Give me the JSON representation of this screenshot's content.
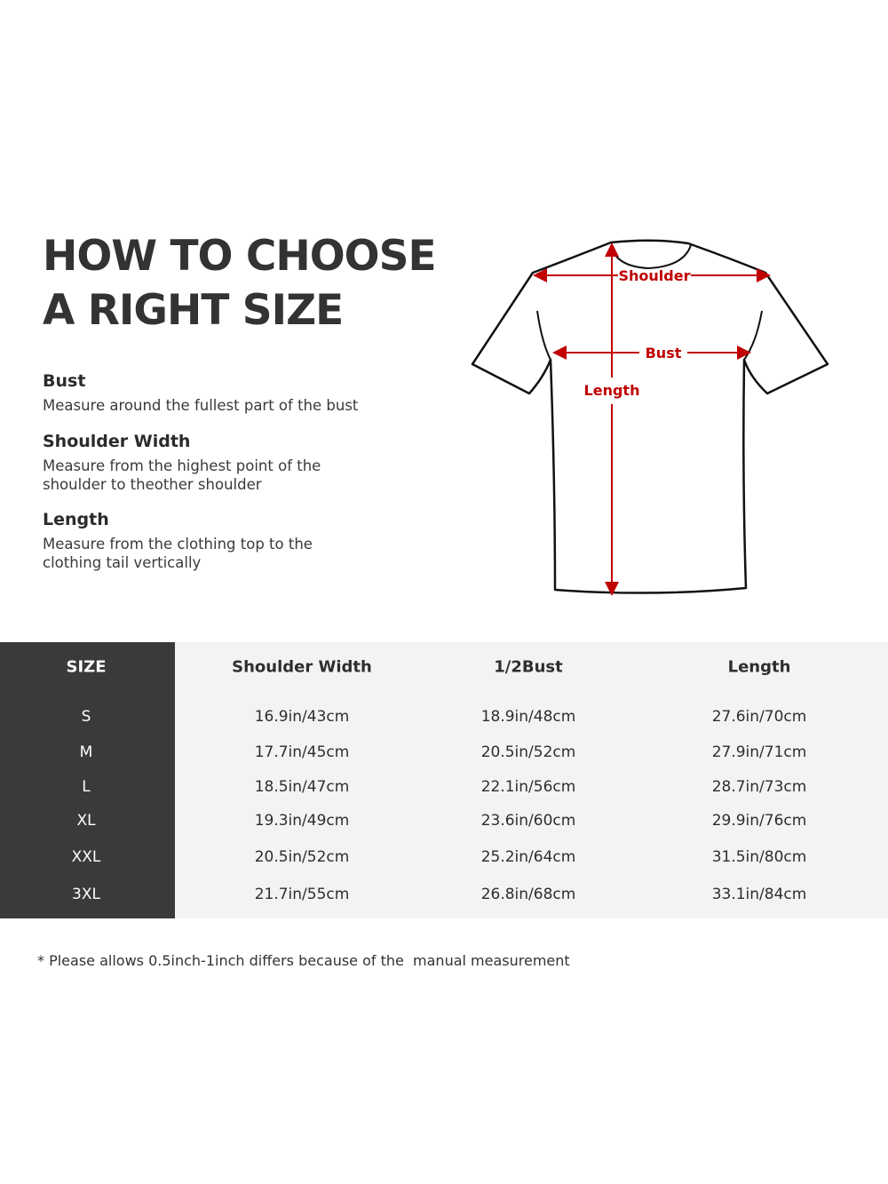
{
  "title": [
    "HOW TO CHOOSE",
    "A RIGHT SIZE"
  ],
  "definitions": [
    {
      "term": "Bust",
      "desc": "Measure around the fullest part of the bust"
    },
    {
      "term": "Shoulder Width",
      "desc": "Measure from the highest point of the shoulder to theother shoulder"
    },
    {
      "term": "Length",
      "desc": "Measure from the clothing top to the clothing tail vertically"
    }
  ],
  "diagram": {
    "shoulder": "Shoulder",
    "bust": "Bust",
    "length": "Length",
    "accent_color": "#c00000"
  },
  "table": {
    "headers": [
      "SIZE",
      "Shoulder Width",
      "1/2Bust",
      "Length"
    ],
    "rows": [
      [
        "S",
        "16.9in/43cm",
        "18.9in/48cm",
        "27.6in/70cm"
      ],
      [
        "M",
        "17.7in/45cm",
        "20.5in/52cm",
        "27.9in/71cm"
      ],
      [
        "L",
        "18.5in/47cm",
        "22.1in/56cm",
        "28.7in/73cm"
      ],
      [
        "XL",
        "19.3in/49cm",
        "23.6in/60cm",
        "29.9in/76cm"
      ],
      [
        "XXL",
        "20.5in/52cm",
        "25.2in/64cm",
        "31.5in/80cm"
      ],
      [
        "3XL",
        "21.7in/55cm",
        "26.8in/68cm",
        "33.1in/84cm"
      ]
    ]
  },
  "note": "* Please allows 0.5inch-1inch differs because of the  manual measurement"
}
